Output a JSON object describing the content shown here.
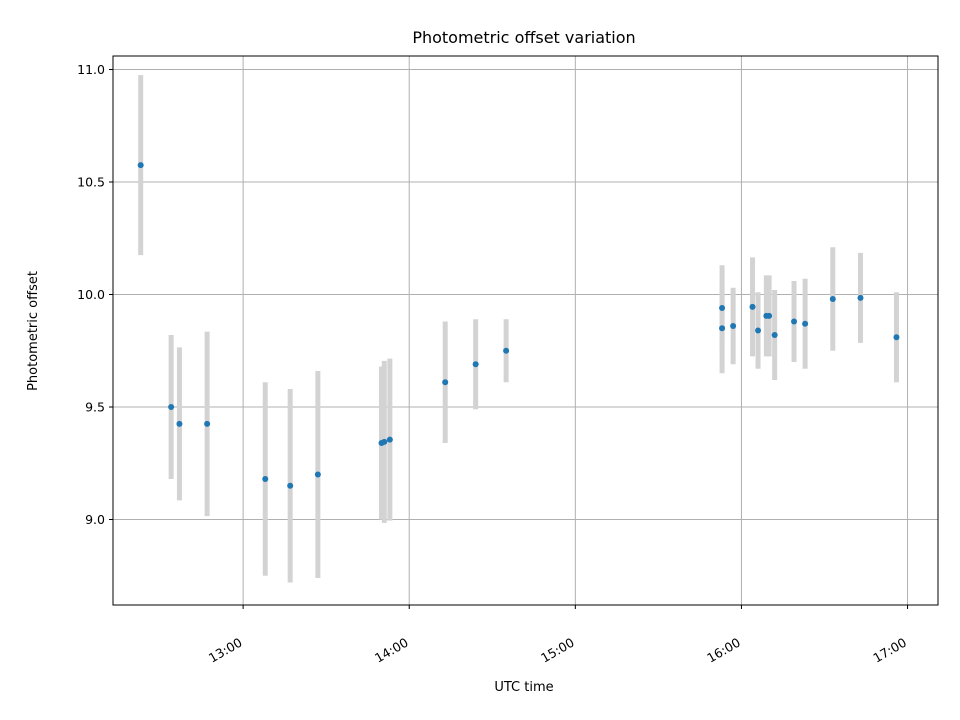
{
  "chart_data": {
    "type": "scatter",
    "title": "Photometric offset variation",
    "xlabel": "UTC time",
    "ylabel": "Photometric offset",
    "x_unit": "UTC time (HH:MM)",
    "x_ticks": [
      "13:00",
      "14:00",
      "15:00",
      "16:00",
      "17:00"
    ],
    "y_ticks": [
      "9.0",
      "9.5",
      "10.0",
      "10.5",
      "11.0"
    ],
    "xlim": [
      "12:13",
      "17:11"
    ],
    "ylim": [
      8.62,
      11.06
    ],
    "grid": true,
    "errorbar_color": "#d3d3d3",
    "marker_color": "#1f77b4",
    "points": [
      {
        "t": "12:23",
        "y": 10.575,
        "err": 0.4
      },
      {
        "t": "12:34",
        "y": 9.5,
        "err": 0.32
      },
      {
        "t": "12:37",
        "y": 9.425,
        "err": 0.34
      },
      {
        "t": "12:47",
        "y": 9.425,
        "err": 0.41
      },
      {
        "t": "13:08",
        "y": 9.18,
        "err": 0.43
      },
      {
        "t": "13:17",
        "y": 9.15,
        "err": 0.43
      },
      {
        "t": "13:27",
        "y": 9.2,
        "err": 0.46
      },
      {
        "t": "13:50",
        "y": 9.34,
        "err": 0.34
      },
      {
        "t": "13:51",
        "y": 9.345,
        "err": 0.36
      },
      {
        "t": "13:53",
        "y": 9.355,
        "err": 0.36
      },
      {
        "t": "14:13",
        "y": 9.61,
        "err": 0.27
      },
      {
        "t": "14:24",
        "y": 9.69,
        "err": 0.2
      },
      {
        "t": "14:35",
        "y": 9.75,
        "err": 0.14
      },
      {
        "t": "15:53",
        "y": 9.85,
        "err": 0.2
      },
      {
        "t": "15:53",
        "y": 9.94,
        "err": 0.19
      },
      {
        "t": "15:57",
        "y": 9.86,
        "err": 0.17
      },
      {
        "t": "16:04",
        "y": 9.945,
        "err": 0.22
      },
      {
        "t": "16:06",
        "y": 9.84,
        "err": 0.17
      },
      {
        "t": "16:09",
        "y": 9.905,
        "err": 0.18
      },
      {
        "t": "16:10",
        "y": 9.905,
        "err": 0.18
      },
      {
        "t": "16:12",
        "y": 9.82,
        "err": 0.2
      },
      {
        "t": "16:19",
        "y": 9.88,
        "err": 0.18
      },
      {
        "t": "16:23",
        "y": 9.87,
        "err": 0.2
      },
      {
        "t": "16:33",
        "y": 9.98,
        "err": 0.23
      },
      {
        "t": "16:43",
        "y": 9.985,
        "err": 0.2
      },
      {
        "t": "16:56",
        "y": 9.81,
        "err": 0.2
      }
    ]
  }
}
